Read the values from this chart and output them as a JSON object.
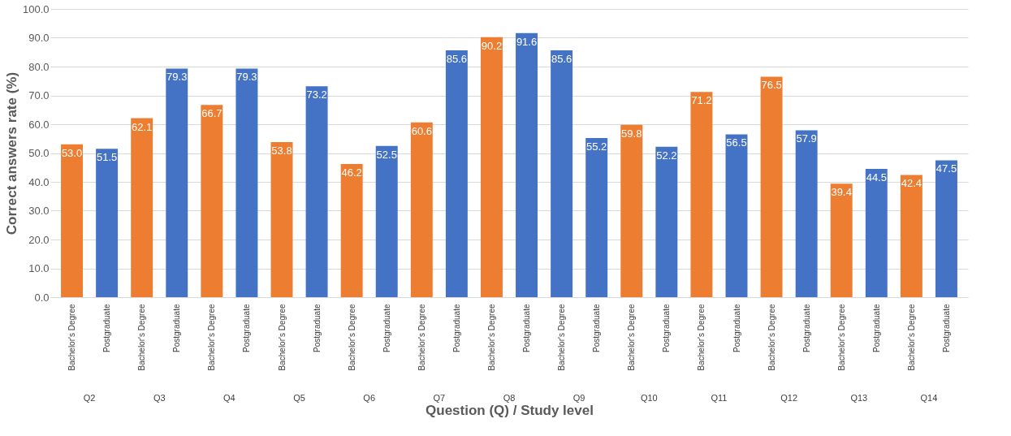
{
  "chart_data": {
    "type": "bar",
    "xlabel": "Question (Q) / Study level",
    "ylabel": "Correct answers rate (%)",
    "categories": [
      "Bachelor's Degree",
      "Postgraduate",
      "Bachelor's Degree",
      "Postgraduate",
      "Bachelor's Degree",
      "Postgraduate",
      "Bachelor's Degree",
      "Postgraduate",
      "Bachelor's Degree",
      "Postgraduate",
      "Bachelor's Degree",
      "Postgraduate",
      "Bachelor's Degree",
      "Postgraduate",
      "Bachelor's Degree",
      "Postgraduate",
      "Bachelor's Degree",
      "Postgraduate",
      "Bachelor's Degree",
      "Postgraduate",
      "Bachelor's Degree",
      "Postgraduate",
      "Bachelor's Degree",
      "Postgraduate",
      "Bachelor's Degree",
      "Postgraduate"
    ],
    "series": [
      {
        "values": [
          53.0,
          51.5,
          62.1,
          79.3,
          66.7,
          79.3,
          53.8,
          73.2,
          46.2,
          52.5,
          60.6,
          85.6,
          90.2,
          91.6,
          85.6,
          55.2,
          59.8,
          52.2,
          71.2,
          56.5,
          76.5,
          57.9,
          39.4,
          44.5,
          42.4,
          47.5
        ],
        "colors": [
          "#ed7d31",
          "#4472c4",
          "#ed7d31",
          "#4472c4",
          "#ed7d31",
          "#4472c4",
          "#ed7d31",
          "#4472c4",
          "#ed7d31",
          "#4472c4",
          "#ed7d31",
          "#4472c4",
          "#ed7d31",
          "#4472c4",
          "#4472c4",
          "#4472c4",
          "#ed7d31",
          "#4472c4",
          "#ed7d31",
          "#4472c4",
          "#ed7d31",
          "#4472c4",
          "#ed7d31",
          "#4472c4",
          "#ed7d31",
          "#4472c4"
        ]
      }
    ],
    "annotations": [
      "Q2",
      "Q3",
      "Q4",
      "Q5",
      "Q6",
      "Q7",
      "Q8",
      "Q9",
      "Q10",
      "Q11",
      "Q12",
      "Q13",
      "Q14"
    ],
    "ylim": [
      0,
      100
    ],
    "yticks": [
      {
        "value": 0,
        "label": "0.0"
      },
      {
        "value": 10,
        "label": "10.0"
      },
      {
        "value": 20,
        "label": "20.0"
      },
      {
        "value": 30,
        "label": "30.0"
      },
      {
        "value": 40,
        "label": "40.0"
      },
      {
        "value": 50,
        "label": "50.0"
      },
      {
        "value": 60,
        "label": "60.0"
      },
      {
        "value": 70,
        "label": "70.0"
      },
      {
        "value": 80,
        "label": "80.0"
      },
      {
        "value": 90,
        "label": "90.0"
      },
      {
        "value": 100,
        "label": "100.0"
      }
    ],
    "value_labels": [
      "53.0",
      "51.5",
      "62.1",
      "79.3",
      "66.7",
      "79.3",
      "53.8",
      "73.2",
      "46.2",
      "52.5",
      "60.6",
      "85.6",
      "90.2",
      "91.6",
      "85.6",
      "55.2",
      "59.8",
      "52.2",
      "71.2",
      "56.5",
      "76.5",
      "57.9",
      "39.4",
      "44.5",
      "42.4",
      "47.5"
    ],
    "grid": "y"
  }
}
